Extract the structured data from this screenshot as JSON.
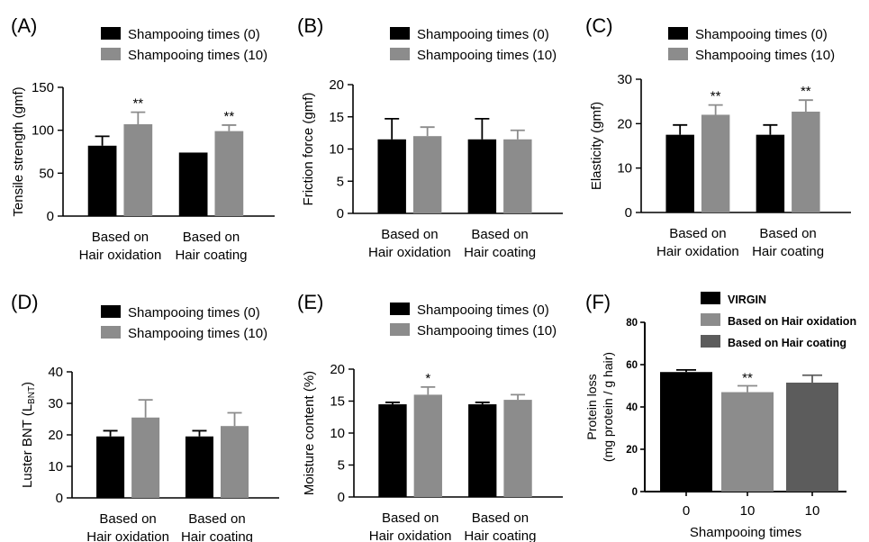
{
  "colors": {
    "black": "#000000",
    "gray": "#8c8c8c",
    "dark_gray": "#5c5c5c"
  },
  "chart_data": [
    {
      "panel_label": "(A)",
      "type": "bar",
      "categories": [
        [
          "Based on",
          "Hair oxidation"
        ],
        [
          "Based on",
          "Hair coating"
        ]
      ],
      "ylabel": "Tensile strength (gmf)",
      "ylim": [
        0,
        150
      ],
      "yticks": [
        0,
        50,
        100,
        150
      ],
      "series": [
        {
          "name": "Shampooing times (0)",
          "color": "#000000",
          "values": [
            82,
            74
          ],
          "errors": [
            11,
            0
          ]
        },
        {
          "name": "Shampooing times (10)",
          "color": "#8c8c8c",
          "values": [
            107,
            99
          ],
          "errors": [
            14,
            7
          ]
        }
      ],
      "annotations": [
        {
          "series": 1,
          "category": 0,
          "text": "**"
        },
        {
          "series": 1,
          "category": 1,
          "text": "**"
        }
      ]
    },
    {
      "panel_label": "(B)",
      "type": "bar",
      "categories": [
        [
          "Based on",
          "Hair oxidation"
        ],
        [
          "Based on",
          "Hair coating"
        ]
      ],
      "ylabel": "Friction force (gmf)",
      "ylim": [
        0,
        20
      ],
      "yticks": [
        0,
        5,
        10,
        15,
        20
      ],
      "series": [
        {
          "name": "Shampooing times (0)",
          "color": "#000000",
          "values": [
            11.5,
            11.5
          ],
          "errors": [
            3.2,
            3.2
          ]
        },
        {
          "name": "Shampooing times (10)",
          "color": "#8c8c8c",
          "values": [
            12.0,
            11.5
          ],
          "errors": [
            1.4,
            1.4
          ]
        }
      ],
      "annotations": []
    },
    {
      "panel_label": "(C)",
      "type": "bar",
      "categories": [
        [
          "Based on",
          "Hair oxidation"
        ],
        [
          "Based on",
          "Hair coating"
        ]
      ],
      "ylabel": "Elasticity (gmf)",
      "ylim": [
        0,
        30
      ],
      "yticks": [
        0,
        10,
        20,
        30
      ],
      "series": [
        {
          "name": "Shampooing times (0)",
          "color": "#000000",
          "values": [
            17.5,
            17.5
          ],
          "errors": [
            2.2,
            2.2
          ]
        },
        {
          "name": "Shampooing times (10)",
          "color": "#8c8c8c",
          "values": [
            22.0,
            22.7
          ],
          "errors": [
            2.2,
            2.6
          ]
        }
      ],
      "annotations": [
        {
          "series": 1,
          "category": 0,
          "text": "**"
        },
        {
          "series": 1,
          "category": 1,
          "text": "**"
        }
      ]
    },
    {
      "panel_label": "(D)",
      "type": "bar",
      "categories": [
        [
          "Based on",
          "Hair oxidation"
        ],
        [
          "Based on",
          "Hair coating"
        ]
      ],
      "ylabel": "Luster BNT (L",
      "ylabel_sub": "BNT",
      "ylabel_end": ")",
      "ylim": [
        0,
        40
      ],
      "yticks": [
        0,
        10,
        20,
        30,
        40
      ],
      "series": [
        {
          "name": "Shampooing times (0)",
          "color": "#000000",
          "values": [
            19.5,
            19.5
          ],
          "errors": [
            1.8,
            1.8
          ]
        },
        {
          "name": "Shampooing times (10)",
          "color": "#8c8c8c",
          "values": [
            25.5,
            22.8
          ],
          "errors": [
            5.6,
            4.2
          ]
        }
      ],
      "annotations": []
    },
    {
      "panel_label": "(E)",
      "type": "bar",
      "categories": [
        [
          "Based on",
          "Hair oxidation"
        ],
        [
          "Based on",
          "Hair coating"
        ]
      ],
      "ylabel": "Moisture content (%)",
      "ylim": [
        0,
        20
      ],
      "yticks": [
        0,
        5,
        10,
        15,
        20
      ],
      "series": [
        {
          "name": "Shampooing times (0)",
          "color": "#000000",
          "values": [
            14.5,
            14.5
          ],
          "errors": [
            0.3,
            0.3
          ]
        },
        {
          "name": "Shampooing times (10)",
          "color": "#8c8c8c",
          "values": [
            16.0,
            15.2
          ],
          "errors": [
            1.2,
            0.8
          ]
        }
      ],
      "annotations": [
        {
          "series": 1,
          "category": 0,
          "text": "*"
        }
      ]
    },
    {
      "panel_label": "(F)",
      "type": "bar",
      "categories": [
        "0",
        "10",
        "10"
      ],
      "xlabel": "Shampooing times",
      "ylabel": "Protein loss",
      "ylabel2": "(mg protein / g hair)",
      "ylim": [
        0,
        80
      ],
      "yticks": [
        0,
        20,
        40,
        60,
        80
      ],
      "legend": [
        "VIRGIN",
        "Based on  Hair oxidation",
        "Based on Hair coating"
      ],
      "bars": [
        {
          "value": 56.5,
          "error": 1.0,
          "color": "#000000"
        },
        {
          "value": 47.0,
          "error": 3.0,
          "color": "#8c8c8c"
        },
        {
          "value": 51.5,
          "error": 3.5,
          "color": "#5c5c5c"
        }
      ],
      "annotations": [
        {
          "category": 1,
          "text": "**"
        }
      ]
    }
  ]
}
